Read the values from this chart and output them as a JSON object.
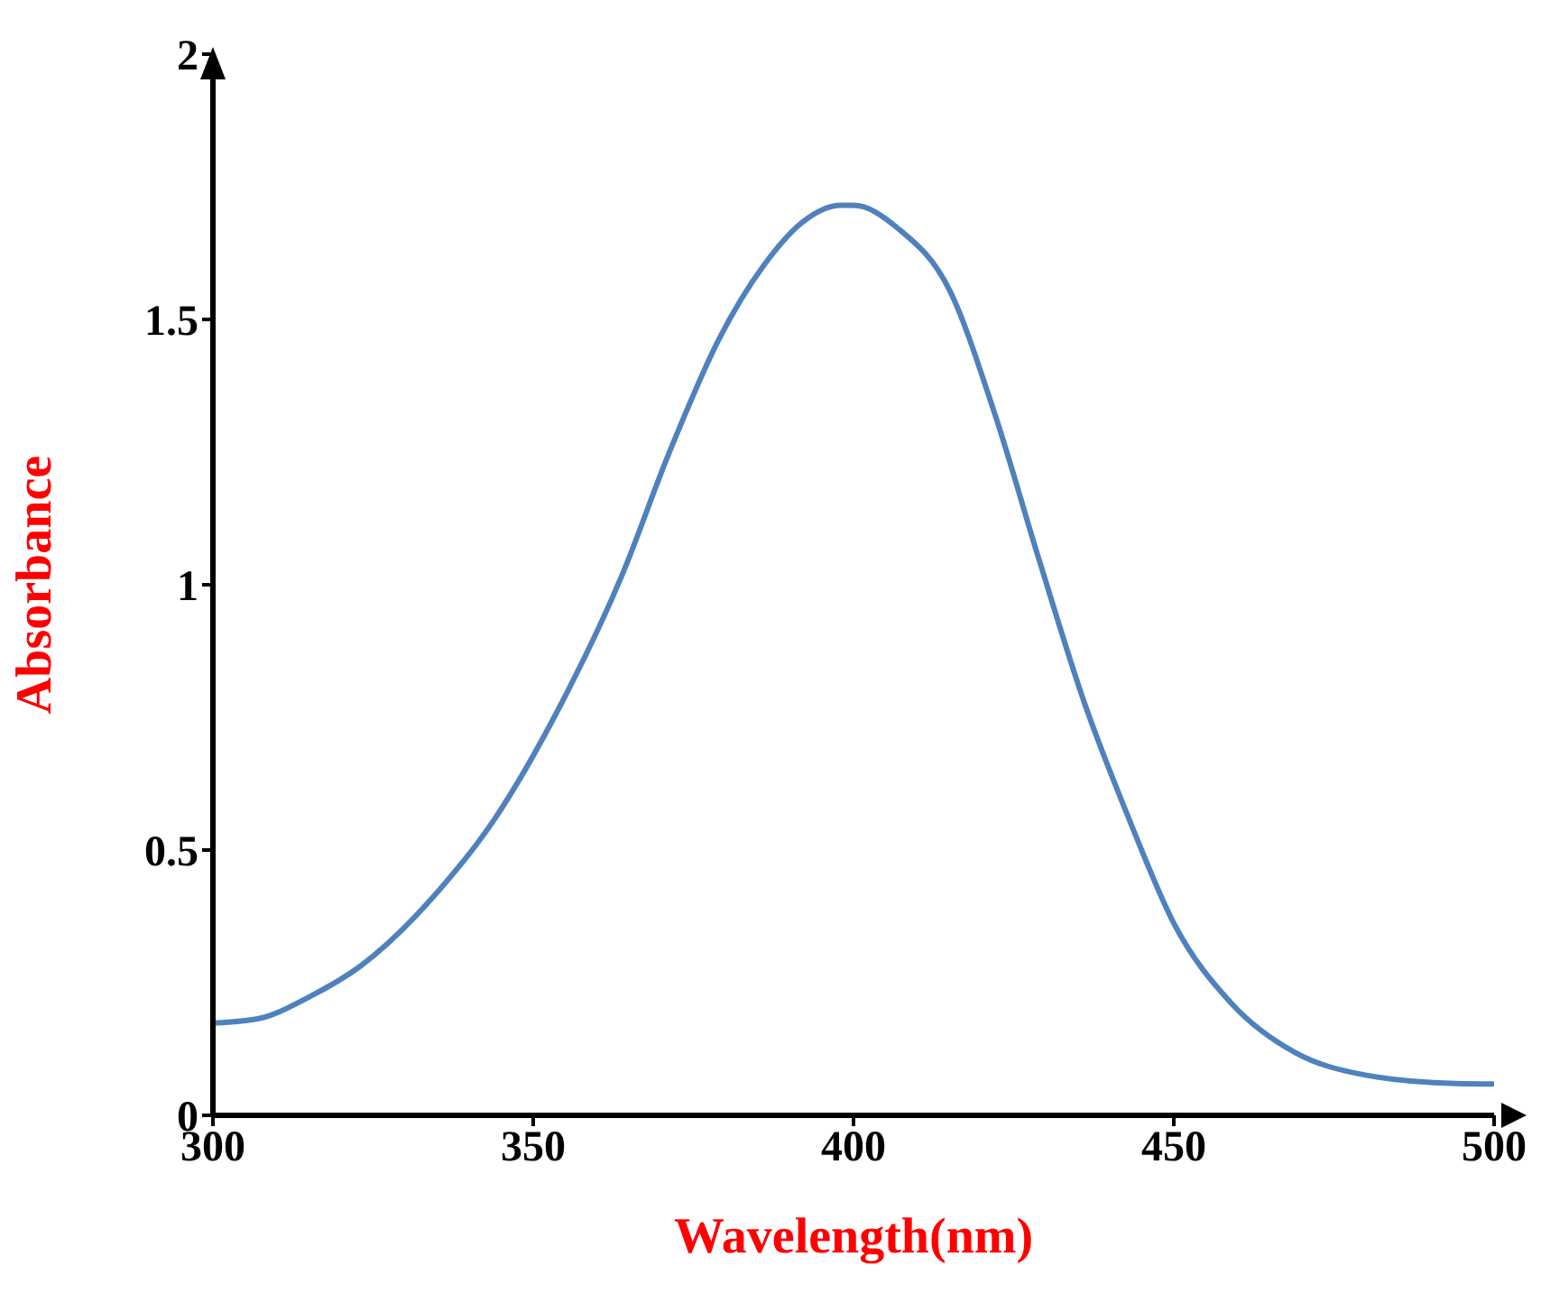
{
  "chart_data": {
    "type": "line",
    "xlabel": "Wavelength(nm)",
    "ylabel": "Absorbance",
    "xlim": [
      300,
      500
    ],
    "xticks": [
      300,
      350,
      400,
      450,
      500
    ],
    "ylim": [
      0,
      2
    ],
    "yticks": [
      0,
      0.5,
      1,
      1.5,
      2
    ],
    "grid": false,
    "legend": false,
    "marker": "none",
    "line_style": "solid",
    "series": [
      {
        "color": "#4f81bd",
        "x": [
          300,
          307,
          315,
          323,
          335,
          344,
          354,
          364,
          371,
          379,
          386,
          392,
          398,
          400,
          407,
          415,
          422,
          429,
          436,
          443,
          450,
          459,
          469,
          479,
          494,
          500
        ],
        "values": [
          0.174,
          0.182,
          0.223,
          0.281,
          0.42,
          0.559,
          0.767,
          1.022,
          1.242,
          1.463,
          1.602,
          1.683,
          1.715,
          1.715,
          1.671,
          1.555,
          1.324,
          1.046,
          0.779,
          0.559,
          0.362,
          0.211,
          0.118,
          0.078,
          0.06,
          0.059
        ]
      }
    ]
  }
}
